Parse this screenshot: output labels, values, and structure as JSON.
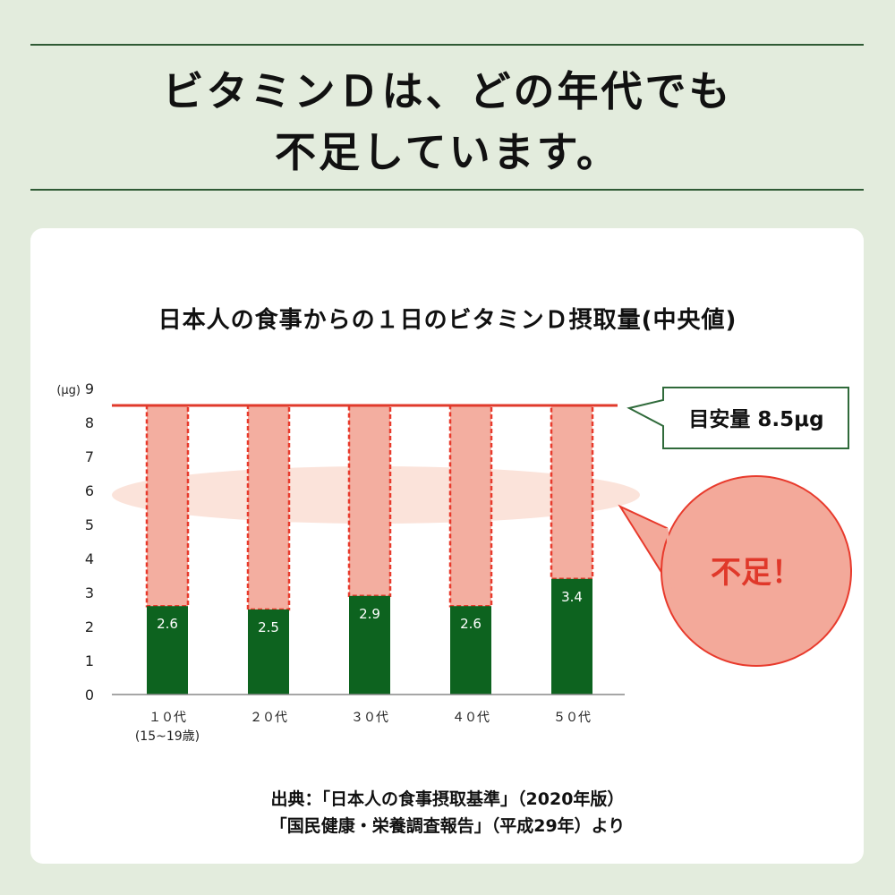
{
  "headline": {
    "line1": "ビタミンＤは、どの年代でも",
    "line2": "不足しています。"
  },
  "chart_data": {
    "type": "bar",
    "title": "日本人の食事からの１日のビタミンＤ摂取量(中央値)",
    "unit_label": "(μg)",
    "ylim": [
      0,
      9
    ],
    "yticks": [
      "0",
      "1",
      "2",
      "3",
      "4",
      "5",
      "6",
      "7",
      "8",
      "9"
    ],
    "categories": [
      "１０代",
      "２０代",
      "３０代",
      "４０代",
      "５０代"
    ],
    "category_sublabels": [
      "(15~19歳)",
      "",
      "",
      "",
      ""
    ],
    "values": [
      2.6,
      2.5,
      2.9,
      2.6,
      3.4
    ],
    "value_labels": [
      "2.6",
      "2.5",
      "2.9",
      "2.6",
      "3.4"
    ],
    "reference": {
      "value": 8.5,
      "label": "目安量 8.5μg"
    },
    "shortfall_label": "不足！",
    "grid": false,
    "colors": {
      "bar": "#0d631f",
      "shortfall_fill": "#f3aea0",
      "shortfall_border": "#e83a2c",
      "reference_line": "#e03a2b",
      "label_box_border": "#2f6a3a",
      "bubble_fill": "#f3a99a",
      "bubble_text": "#e0382a",
      "band": "#fbe3da"
    }
  },
  "source": {
    "line1": "出典：「日本人の食事摂取基準」（2020年版）",
    "line2": "「国民健康・栄養調査報告」（平成29年）より"
  }
}
